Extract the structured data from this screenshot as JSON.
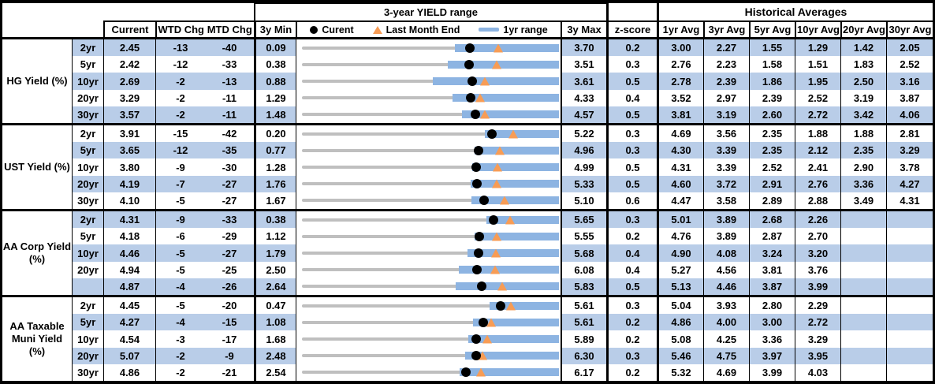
{
  "colors": {
    "stripe": "#b9cde8",
    "bar": "#8db4e2",
    "marker_orange": "#f79c55",
    "line_gray": "#bfbfbf",
    "border_black": "#000000",
    "text": "#000000",
    "bg": "#ffffff"
  },
  "header": {
    "chart_title": "3-year YIELD range",
    "historical_title": "Historical Averages",
    "columns": {
      "current": "Current",
      "wtd": "WTD Chg",
      "mtd": "MTD Chg",
      "min3y": "3y Min",
      "max3y": "3y Max",
      "zscore": "z-score",
      "avg1": "1yr Avg",
      "avg3": "3yr Avg",
      "avg5": "5yr Avg",
      "avg10": "10yr Avg",
      "avg20": "20yr Avg",
      "avg30": "30yr Avg"
    },
    "legend": [
      {
        "marker": "black-circle",
        "label": "Curent"
      },
      {
        "marker": "orange-triangle",
        "label": "Last Month End"
      },
      {
        "marker": "blue-bar",
        "label": "1yr range"
      }
    ]
  },
  "chart_data": {
    "type": "bullet",
    "axis": "each row spans 3y Min to 3y Max; blue bar = 1yr range (yr1_low to yr1_high); black dot = current; orange triangle = last_month_end",
    "sections": [
      {
        "label": "HG Yield (%)",
        "rows": [
          {
            "tenor": "2yr",
            "current": "2.45",
            "wtd": "-13",
            "mtd": "-40",
            "min": "0.09",
            "max": "3.70",
            "z": "0.2",
            "avgs": [
              "3.00",
              "2.27",
              "1.55",
              "1.29",
              "1.42",
              "2.05"
            ],
            "last_month_end": 2.85,
            "yr1_low": 2.24,
            "yr1_high": 3.7
          },
          {
            "tenor": "5yr",
            "current": "2.42",
            "wtd": "-12",
            "mtd": "-33",
            "min": "0.38",
            "max": "3.51",
            "z": "0.3",
            "avgs": [
              "2.76",
              "2.23",
              "1.58",
              "1.51",
              "1.83",
              "2.52"
            ],
            "last_month_end": 2.75,
            "yr1_low": 2.16,
            "yr1_high": 3.51
          },
          {
            "tenor": "10yr",
            "current": "2.69",
            "wtd": "-2",
            "mtd": "-13",
            "min": "0.88",
            "max": "3.61",
            "z": "0.5",
            "avgs": [
              "2.78",
              "2.39",
              "1.86",
              "1.95",
              "2.50",
              "3.16"
            ],
            "last_month_end": 2.82,
            "yr1_low": 2.27,
            "yr1_high": 3.61
          },
          {
            "tenor": "20yr",
            "current": "3.29",
            "wtd": "-2",
            "mtd": "-11",
            "min": "1.29",
            "max": "4.33",
            "z": "0.4",
            "avgs": [
              "3.52",
              "2.97",
              "2.39",
              "2.52",
              "3.19",
              "3.87"
            ],
            "last_month_end": 3.4,
            "yr1_low": 3.07,
            "yr1_high": 4.33
          },
          {
            "tenor": "30yr",
            "current": "3.57",
            "wtd": "-2",
            "mtd": "-11",
            "min": "1.48",
            "max": "4.57",
            "z": "0.5",
            "avgs": [
              "3.81",
              "3.19",
              "2.60",
              "2.72",
              "3.42",
              "4.06"
            ],
            "last_month_end": 3.68,
            "yr1_low": 3.4,
            "yr1_high": 4.57
          }
        ]
      },
      {
        "label": "UST Yield (%)",
        "rows": [
          {
            "tenor": "2yr",
            "current": "3.91",
            "wtd": "-15",
            "mtd": "-42",
            "min": "0.20",
            "max": "5.22",
            "z": "0.3",
            "avgs": [
              "4.69",
              "3.56",
              "2.35",
              "1.88",
              "1.88",
              "2.81"
            ],
            "last_month_end": 4.33,
            "yr1_low": 3.77,
            "yr1_high": 5.22
          },
          {
            "tenor": "5yr",
            "current": "3.65",
            "wtd": "-12",
            "mtd": "-35",
            "min": "0.77",
            "max": "4.96",
            "z": "0.3",
            "avgs": [
              "4.30",
              "3.39",
              "2.35",
              "2.12",
              "2.35",
              "3.29"
            ],
            "last_month_end": 4.0,
            "yr1_low": 3.58,
            "yr1_high": 4.96
          },
          {
            "tenor": "10yr",
            "current": "3.80",
            "wtd": "-9",
            "mtd": "-30",
            "min": "1.28",
            "max": "4.99",
            "z": "0.5",
            "avgs": [
              "4.31",
              "3.39",
              "2.52",
              "2.41",
              "2.90",
              "3.78"
            ],
            "last_month_end": 4.1,
            "yr1_low": 3.74,
            "yr1_high": 4.99
          },
          {
            "tenor": "20yr",
            "current": "4.19",
            "wtd": "-7",
            "mtd": "-27",
            "min": "1.76",
            "max": "5.33",
            "z": "0.5",
            "avgs": [
              "4.60",
              "3.72",
              "2.91",
              "2.76",
              "3.36",
              "4.27"
            ],
            "last_month_end": 4.46,
            "yr1_low": 4.1,
            "yr1_high": 5.33
          },
          {
            "tenor": "30yr",
            "current": "4.10",
            "wtd": "-5",
            "mtd": "-27",
            "min": "1.67",
            "max": "5.10",
            "z": "0.6",
            "avgs": [
              "4.47",
              "3.58",
              "2.89",
              "2.88",
              "3.49",
              "4.31"
            ],
            "last_month_end": 4.37,
            "yr1_low": 3.93,
            "yr1_high": 5.1
          }
        ]
      },
      {
        "label": "AA Corp Yield\n(%)",
        "rows": [
          {
            "tenor": "2yr",
            "current": "4.31",
            "wtd": "-9",
            "mtd": "-33",
            "min": "0.38",
            "max": "5.65",
            "z": "0.3",
            "avgs": [
              "5.01",
              "3.89",
              "2.68",
              "2.26",
              "",
              ""
            ],
            "last_month_end": 4.64,
            "yr1_low": 4.17,
            "yr1_high": 5.65
          },
          {
            "tenor": "5yr",
            "current": "4.18",
            "wtd": "-6",
            "mtd": "-29",
            "min": "1.12",
            "max": "5.55",
            "z": "0.2",
            "avgs": [
              "4.76",
              "3.89",
              "2.87",
              "2.70",
              "",
              ""
            ],
            "last_month_end": 4.47,
            "yr1_low": 4.09,
            "yr1_high": 5.55
          },
          {
            "tenor": "10yr",
            "current": "4.46",
            "wtd": "-5",
            "mtd": "-27",
            "min": "1.79",
            "max": "5.68",
            "z": "0.4",
            "avgs": [
              "4.90",
              "4.08",
              "3.24",
              "3.20",
              "",
              ""
            ],
            "last_month_end": 4.73,
            "yr1_low": 4.29,
            "yr1_high": 5.68
          },
          {
            "tenor": "20yr",
            "current": "4.94",
            "wtd": "-5",
            "mtd": "-25",
            "min": "2.50",
            "max": "6.08",
            "z": "0.4",
            "avgs": [
              "5.27",
              "4.56",
              "3.81",
              "3.76",
              "",
              ""
            ],
            "last_month_end": 5.19,
            "yr1_low": 4.69,
            "yr1_high": 6.08
          },
          {
            "tenor": "",
            "current": "4.87",
            "wtd": "-4",
            "mtd": "-26",
            "min": "2.64",
            "max": "5.83",
            "z": "0.5",
            "avgs": [
              "5.13",
              "4.46",
              "3.87",
              "3.99",
              "",
              ""
            ],
            "last_month_end": 5.13,
            "yr1_low": 4.55,
            "yr1_high": 5.83
          }
        ]
      },
      {
        "label": "AA Taxable\nMuni Yield\n(%)",
        "rows": [
          {
            "tenor": "2yr",
            "current": "4.45",
            "wtd": "-5",
            "mtd": "-20",
            "min": "0.47",
            "max": "5.61",
            "z": "0.3",
            "avgs": [
              "5.04",
              "3.93",
              "2.80",
              "2.29",
              "",
              ""
            ],
            "last_month_end": 4.65,
            "yr1_low": 4.22,
            "yr1_high": 5.61
          },
          {
            "tenor": "5yr",
            "current": "4.27",
            "wtd": "-4",
            "mtd": "-15",
            "min": "1.08",
            "max": "5.61",
            "z": "0.2",
            "avgs": [
              "4.86",
              "4.00",
              "3.00",
              "2.72",
              "",
              ""
            ],
            "last_month_end": 4.42,
            "yr1_low": 4.09,
            "yr1_high": 5.61
          },
          {
            "tenor": "10yr",
            "current": "4.54",
            "wtd": "-3",
            "mtd": "-17",
            "min": "1.68",
            "max": "5.89",
            "z": "0.2",
            "avgs": [
              "5.08",
              "4.25",
              "3.36",
              "3.29",
              "",
              ""
            ],
            "last_month_end": 4.71,
            "yr1_low": 4.4,
            "yr1_high": 5.89
          },
          {
            "tenor": "20yr",
            "current": "5.07",
            "wtd": "-2",
            "mtd": "-9",
            "min": "2.48",
            "max": "6.30",
            "z": "0.3",
            "avgs": [
              "5.46",
              "4.75",
              "3.97",
              "3.95",
              "",
              ""
            ],
            "last_month_end": 5.16,
            "yr1_low": 4.9,
            "yr1_high": 6.3
          },
          {
            "tenor": "30yr",
            "current": "4.86",
            "wtd": "-2",
            "mtd": "-21",
            "min": "2.54",
            "max": "6.17",
            "z": "0.2",
            "avgs": [
              "5.32",
              "4.69",
              "3.99",
              "4.03",
              "",
              ""
            ],
            "last_month_end": 5.07,
            "yr1_low": 4.77,
            "yr1_high": 6.17
          }
        ]
      }
    ]
  }
}
